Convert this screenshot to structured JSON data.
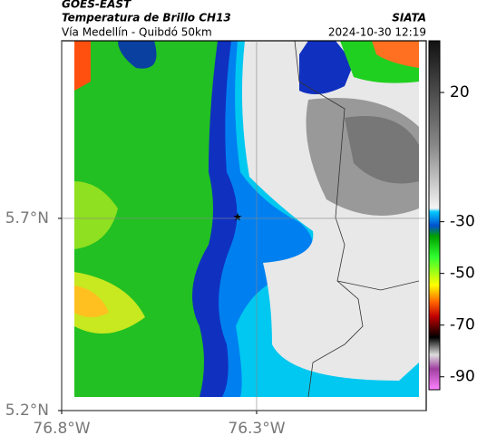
{
  "header": {
    "satellite": "GOES-EAST",
    "product": "Temperatura de Brillo CH13",
    "route": "Vía Medellín - Quibdó 50km",
    "source": "SIATA",
    "timestamp": "2024-10-30 12:19"
  },
  "map": {
    "xlim": [
      -76.8,
      -75.865
    ],
    "ylim": [
      5.2,
      6.162
    ],
    "xticks": [
      {
        "value": -76.8,
        "label": "76.8°W"
      },
      {
        "value": -76.3,
        "label": "76.3°W"
      }
    ],
    "yticks": [
      {
        "value": 5.2,
        "label": "5.2°N"
      },
      {
        "value": 5.7,
        "label": "5.7°N"
      }
    ],
    "grid": true
  },
  "colorbar": {
    "lim": [
      -95,
      40
    ],
    "ticks": [
      20,
      -30,
      -50,
      -70,
      -90
    ]
  }
}
